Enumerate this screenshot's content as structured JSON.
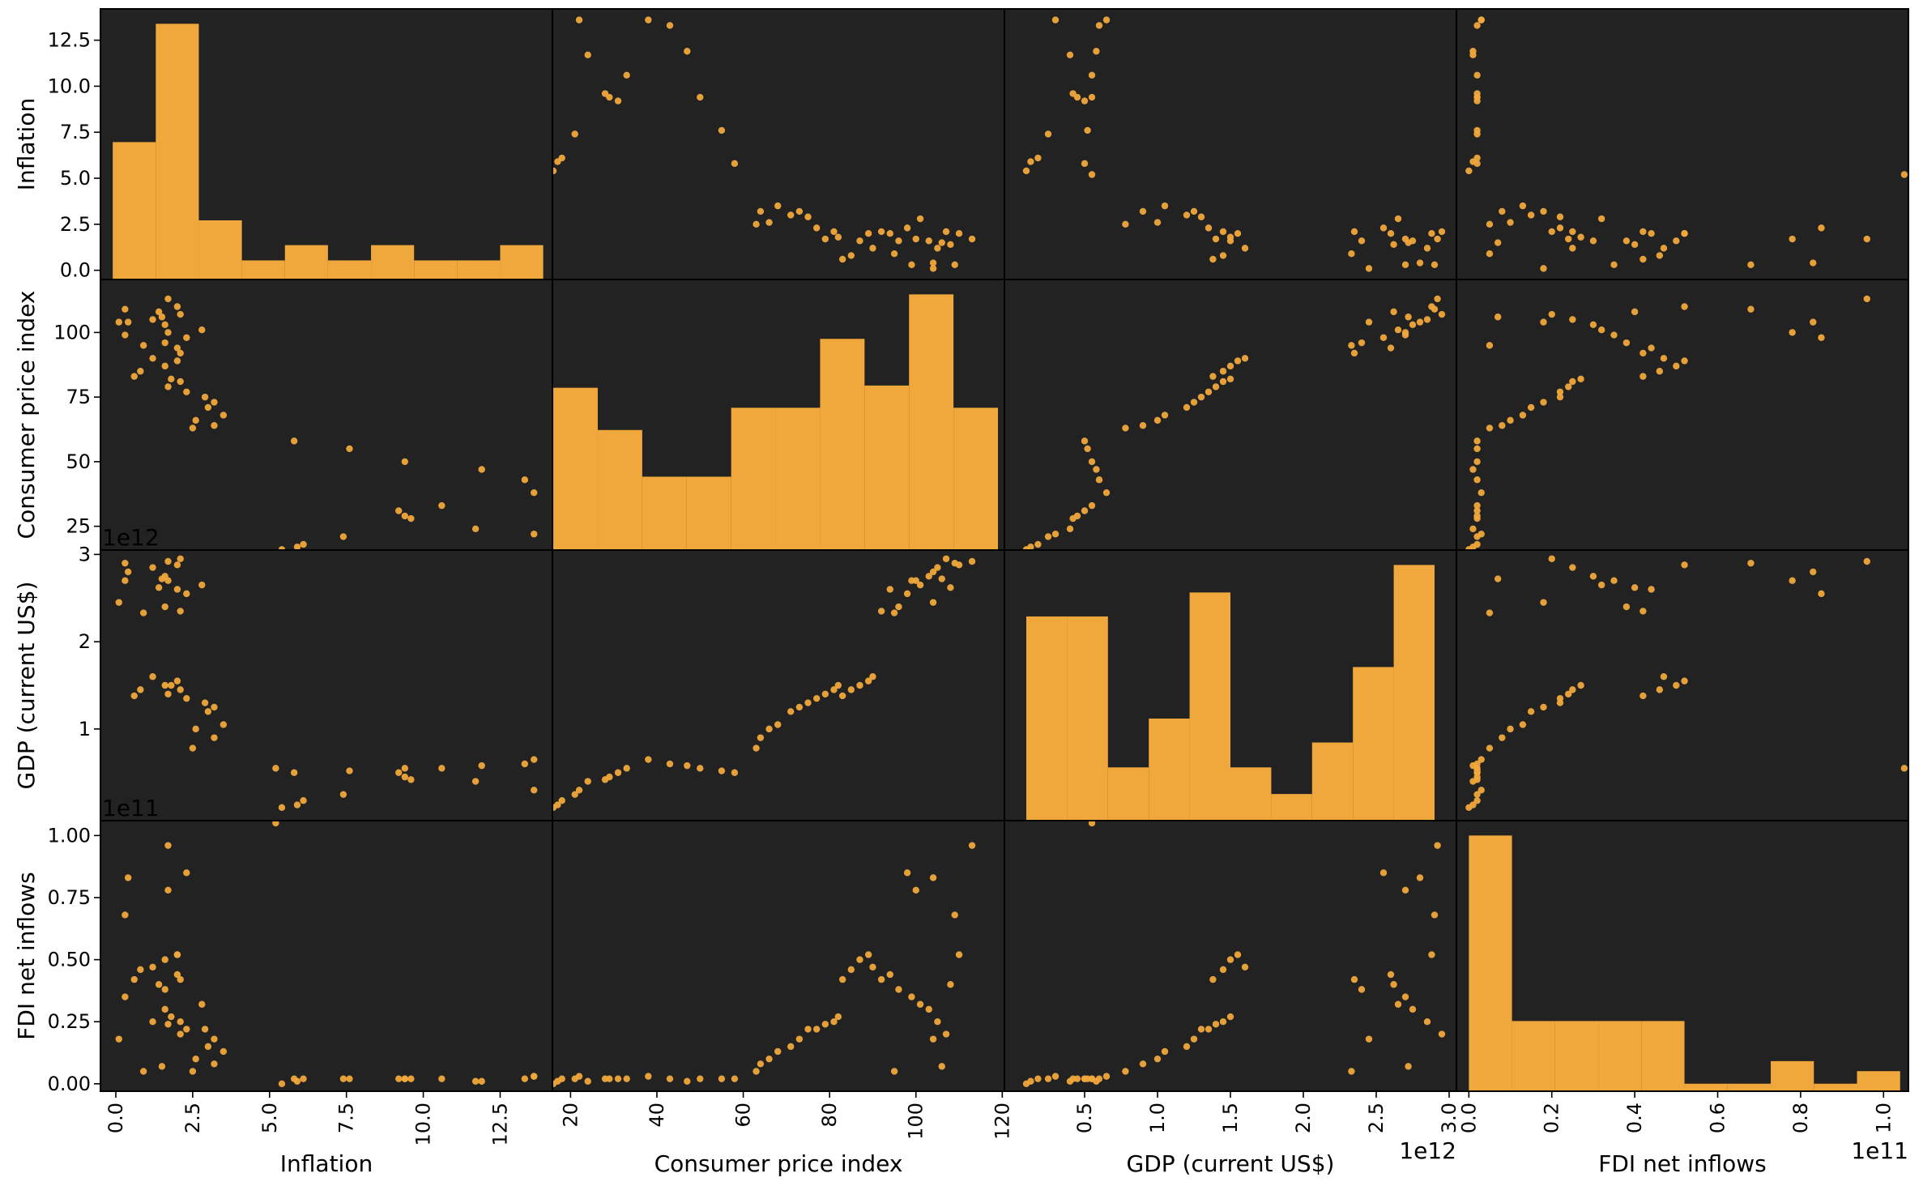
{
  "colors": {
    "panel_background": "#222222",
    "marks": "#F0A83C",
    "frame": "#000000",
    "figure_background": "#ffffff"
  },
  "chart_data": {
    "type": "scatter-matrix",
    "variables": [
      "Inflation",
      "Consumer price index",
      "GDP (current US$)",
      "FDI net inflows"
    ],
    "axis_labels": {
      "x": [
        "Inflation",
        "Consumer price index",
        "GDP (current US$)",
        "FDI net inflows"
      ],
      "y": [
        "Inflation",
        "Consumer price index",
        "GDP (current US$)",
        "FDI net inflows"
      ]
    },
    "ranges": [
      [
        -0.5,
        14.2
      ],
      [
        15.8,
        120.5
      ],
      [
        -50000000000.0,
        3050000000000.0
      ],
      [
        -3000000000.0,
        106000000000.0
      ]
    ],
    "ticks": [
      {
        "values": [
          0.0,
          2.5,
          5.0,
          7.5,
          10.0,
          12.5
        ],
        "labels": [
          "0.0",
          "2.5",
          "5.0",
          "7.5",
          "10.0",
          "12.5"
        ]
      },
      {
        "values": [
          20,
          40,
          60,
          80,
          100,
          120
        ],
        "labels": [
          "20",
          "40",
          "60",
          "80",
          "100",
          "120"
        ]
      },
      {
        "values": [
          500000000000.0,
          1000000000000.0,
          1500000000000.0,
          2000000000000.0,
          2500000000000.0,
          3000000000000.0
        ],
        "labels": [
          "0.5",
          "1.0",
          "1.5",
          "2.0",
          "2.5",
          "3.0"
        ]
      },
      {
        "values": [
          0.0,
          20000000000.0,
          40000000000.0,
          60000000000.0,
          80000000000.0,
          100000000000.0
        ],
        "labels": [
          "0.0",
          "0.2",
          "0.4",
          "0.6",
          "0.8",
          "1.0"
        ]
      }
    ],
    "y_ticks": [
      {
        "values": [
          0.0,
          2.5,
          5.0,
          7.5,
          10.0,
          12.5
        ],
        "labels": [
          "0.0",
          "2.5",
          "5.0",
          "7.5",
          "10.0",
          "12.5"
        ]
      },
      {
        "values": [
          25,
          50,
          75,
          100
        ],
        "labels": [
          "25",
          "50",
          "75",
          "100"
        ]
      },
      {
        "values": [
          1000000000000.0,
          2000000000000.0,
          3000000000000.0
        ],
        "labels": [
          "1",
          "2",
          "3"
        ]
      },
      {
        "values": [
          0.0,
          25000000000.0,
          50000000000.0,
          75000000000.0,
          100000000000.0
        ],
        "labels": [
          "0.00",
          "0.25",
          "0.50",
          "0.75",
          "1.00"
        ]
      }
    ],
    "offset_labels": {
      "x": [
        "",
        "",
        "1e12",
        "1e11"
      ],
      "y": [
        "",
        "",
        "1e12",
        "1e11"
      ]
    },
    "histograms": [
      {
        "bin_edges": [
          -0.1,
          1.3,
          2.7,
          4.1,
          5.5,
          6.9,
          8.3,
          9.7,
          11.1,
          12.5,
          13.9
        ],
        "heights": [
          7.2,
          13.4,
          3.1,
          1.0,
          1.8,
          1.0,
          1.8,
          1.0,
          1.0,
          1.8
        ]
      },
      {
        "bin_edges": [
          16.0,
          26.3,
          36.6,
          46.9,
          57.2,
          67.5,
          77.8,
          88.1,
          98.4,
          108.7,
          119.0
        ],
        "heights": [
          73,
          54,
          33,
          33,
          64,
          64,
          95,
          74,
          115,
          64
        ]
      },
      {
        "bin_edges": [
          100000000000.0,
          380000000000.0,
          660000000000.0,
          940000000000.0,
          1220000000000.0,
          1500000000000.0,
          1780000000000.0,
          2060000000000.0,
          2340000000000.0,
          2620000000000.0,
          2900000000000.0
        ],
        "heights": [
          2300000000000.0,
          2300000000000.0,
          600000000000.0,
          1150000000000.0,
          2570000000000.0,
          600000000000.0,
          300000000000.0,
          880000000000.0,
          1730000000000.0,
          2880000000000.0
        ]
      },
      {
        "bin_edges": [
          0.0,
          10400000000.0,
          20800000000.0,
          31200000000.0,
          41600000000.0,
          52000000000.0,
          62400000000.0,
          72800000000.0,
          83200000000.0,
          93600000000.0,
          104000000000.0
        ],
        "heights": [
          102000000000.0,
          28000000000.0,
          28000000000.0,
          28000000000.0,
          28000000000.0,
          3000000000.0,
          3000000000.0,
          12000000000.0,
          3000000000.0,
          8000000000.0
        ]
      }
    ],
    "points": [
      [
        5.9,
        17,
        130000000000.0,
        1000000000.0
      ],
      [
        5.4,
        16,
        100000000000.0,
        0.0
      ],
      [
        6.1,
        18,
        180000000000.0,
        2000000000.0
      ],
      [
        7.4,
        21,
        250000000000.0,
        2000000000.0
      ],
      [
        13.6,
        22,
        300000000000.0,
        3000000000.0
      ],
      [
        11.7,
        24,
        400000000000.0,
        1000000000.0
      ],
      [
        9.6,
        28,
        420000000000.0,
        2000000000.0
      ],
      [
        9.4,
        29,
        450000000000.0,
        2000000000.0
      ],
      [
        9.2,
        31,
        500000000000.0,
        2000000000.0
      ],
      [
        10.6,
        33,
        550000000000.0,
        2000000000.0
      ],
      [
        13.6,
        38,
        650000000000.0,
        3000000000.0
      ],
      [
        13.3,
        43,
        600000000000.0,
        2000000000.0
      ],
      [
        11.9,
        47,
        580000000000.0,
        1000000000.0
      ],
      [
        9.4,
        50,
        550000000000.0,
        2000000000.0
      ],
      [
        7.6,
        55,
        520000000000.0,
        2000000000.0
      ],
      [
        5.8,
        58,
        500000000000.0,
        2000000000.0
      ],
      [
        5.2,
        12,
        550000000000.0,
        105000000000.0
      ],
      [
        2.5,
        63,
        780000000000.0,
        5000000000.0
      ],
      [
        3.2,
        64,
        900000000000.0,
        8000000000.0
      ],
      [
        2.6,
        66,
        1000000000000.0,
        10000000000.0
      ],
      [
        3.5,
        68,
        1050000000000.0,
        13000000000.0
      ],
      [
        3.0,
        71,
        1200000000000.0,
        15000000000.0
      ],
      [
        3.2,
        73,
        1250000000000.0,
        18000000000.0
      ],
      [
        2.9,
        75,
        1300000000000.0,
        22000000000.0
      ],
      [
        2.3,
        77,
        1350000000000.0,
        22000000000.0
      ],
      [
        1.7,
        79,
        1400000000000.0,
        24000000000.0
      ],
      [
        2.1,
        81,
        1450000000000.0,
        25000000000.0
      ],
      [
        1.8,
        82,
        1500000000000.0,
        27000000000.0
      ],
      [
        0.6,
        83,
        1380000000000.0,
        42000000000.0
      ],
      [
        0.8,
        85,
        1450000000000.0,
        46000000000.0
      ],
      [
        1.6,
        87,
        1500000000000.0,
        50000000000.0
      ],
      [
        2.0,
        89,
        1550000000000.0,
        52000000000.0
      ],
      [
        1.2,
        90,
        1600000000000.0,
        47000000000.0
      ],
      [
        2.1,
        92,
        2350000000000.0,
        42000000000.0
      ],
      [
        2.0,
        94,
        2600000000000.0,
        44000000000.0
      ],
      [
        1.6,
        96,
        2400000000000.0,
        38000000000.0
      ],
      [
        0.3,
        99,
        2700000000000.0,
        35000000000.0
      ],
      [
        2.8,
        101,
        2650000000000.0,
        32000000000.0
      ],
      [
        1.6,
        103,
        2750000000000.0,
        30000000000.0
      ],
      [
        1.2,
        105,
        2850000000000.0,
        25000000000.0
      ],
      [
        2.1,
        107,
        2950000000000.0,
        20000000000.0
      ],
      [
        1.7,
        100,
        2700000000000.0,
        78000000000.0
      ],
      [
        2.3,
        98,
        2550000000000.0,
        85000000000.0
      ],
      [
        0.4,
        104,
        2800000000000.0,
        83000000000.0
      ],
      [
        1.4,
        108,
        2620000000000.0,
        40000000000.0
      ],
      [
        2.0,
        110,
        2880000000000.0,
        52000000000.0
      ],
      [
        1.7,
        113,
        2920000000000.0,
        96000000000.0
      ],
      [
        0.9,
        95,
        2330000000000.0,
        5000000000.0
      ],
      [
        1.5,
        106,
        2720000000000.0,
        7000000000.0
      ],
      [
        0.1,
        104,
        2450000000000.0,
        18000000000.0
      ],
      [
        0.3,
        109,
        2900000000000.0,
        68000000000.0
      ]
    ]
  }
}
